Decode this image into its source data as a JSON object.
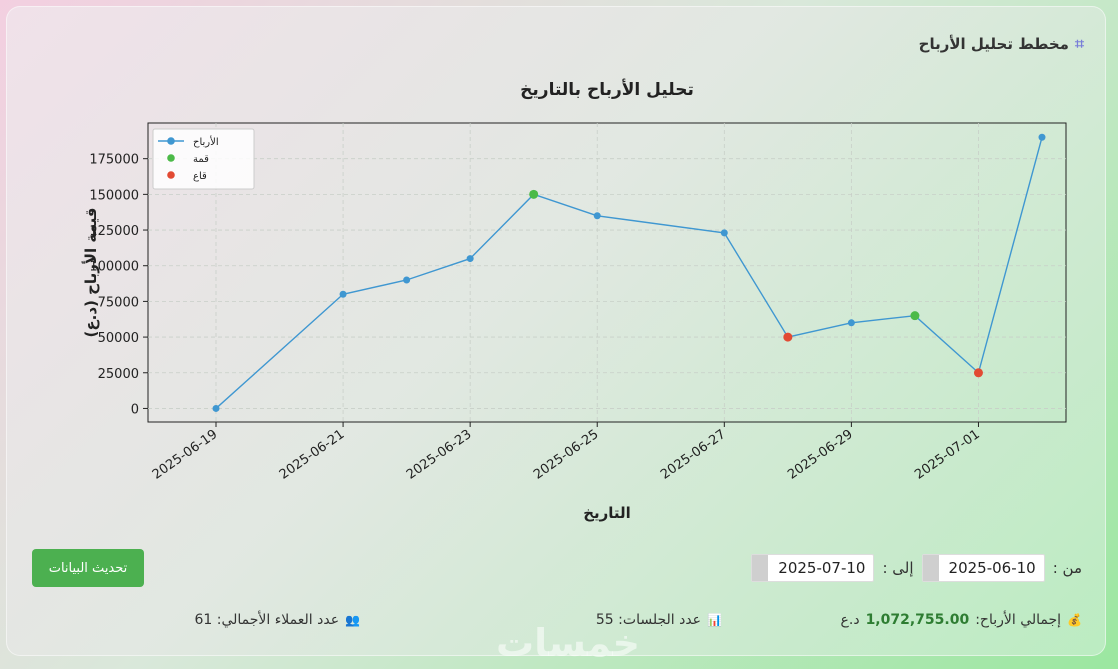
{
  "panel": {
    "icon": "chart-icon",
    "title": "مخطط تحليل الأرباح"
  },
  "chart_data": {
    "type": "line",
    "title": "تحليل الأرباح بالتاريخ",
    "xlabel": "التاريخ",
    "ylabel": "قيمة الأرباح (د.ع)",
    "x": [
      "2025-06-19",
      "2025-06-21",
      "2025-06-22",
      "2025-06-23",
      "2025-06-24",
      "2025-06-25",
      "2025-06-27",
      "2025-06-28",
      "2025-06-29",
      "2025-06-30",
      "2025-07-01",
      "2025-07-02"
    ],
    "series": [
      {
        "name": "الأرباح",
        "color": "#3f97d1",
        "values": [
          0,
          80000,
          90000,
          105000,
          150000,
          135000,
          123000,
          50000,
          60000,
          65000,
          25000,
          190000
        ]
      }
    ],
    "peaks": {
      "name": "قمة",
      "color": "#4cba48",
      "x": [
        "2025-06-24",
        "2025-06-30"
      ],
      "values": [
        150000,
        65000
      ]
    },
    "troughs": {
      "name": "قاع",
      "color": "#e24a33",
      "x": [
        "2025-06-28",
        "2025-07-01"
      ],
      "values": [
        50000,
        25000
      ]
    },
    "xticks": [
      "2025-06-19",
      "2025-06-21",
      "2025-06-23",
      "2025-06-25",
      "2025-06-27",
      "2025-06-29",
      "2025-07-01"
    ],
    "yticks": [
      0,
      25000,
      50000,
      75000,
      100000,
      125000,
      150000,
      175000
    ],
    "xlim": [
      "2025-06-19",
      "2025-07-02"
    ],
    "ylim": [
      -9500,
      200000
    ],
    "grid": true,
    "legend": "top-left"
  },
  "filters": {
    "from_label": "من :",
    "from_value": "2025-06-10",
    "to_label": "إلى :",
    "to_value": "2025-07-10"
  },
  "refresh_button": "تحديث البيانات",
  "stats": {
    "profits_label": "إجمالي الأرباح:",
    "profits_value": "1,072,755.00",
    "profits_unit": "د.ع",
    "sessions": "عدد الجلسات: 55",
    "clients": "عدد العملاء الأجمالي: 61"
  },
  "watermark": "خمسات"
}
